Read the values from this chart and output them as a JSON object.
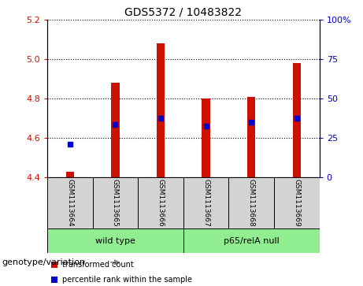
{
  "title": "GDS5372 / 10483822",
  "samples": [
    "GSM1113664",
    "GSM1113665",
    "GSM1113666",
    "GSM1113667",
    "GSM1113668",
    "GSM1113669"
  ],
  "red_values": [
    4.43,
    4.88,
    5.08,
    4.8,
    4.81,
    4.98
  ],
  "blue_values": [
    4.57,
    4.67,
    4.7,
    4.66,
    4.68,
    4.7
  ],
  "ylim_left": [
    4.4,
    5.2
  ],
  "yticks_left": [
    4.4,
    4.6,
    4.8,
    5.0,
    5.2
  ],
  "yticks_right": [
    0,
    25,
    50,
    75,
    100
  ],
  "ylim_right": [
    0,
    100
  ],
  "bar_color": "#CC1100",
  "dot_color": "#0000CC",
  "plot_bg_color": "#ffffff",
  "label_color_left": "#CC1100",
  "label_color_right": "#0000CC",
  "title_fontsize": 10,
  "tick_fontsize": 8,
  "bar_width": 0.18,
  "base_value": 4.4,
  "sample_label_fontsize": 6.5,
  "group_label_fontsize": 8,
  "legend_fontsize": 7,
  "genotype_fontsize": 8
}
